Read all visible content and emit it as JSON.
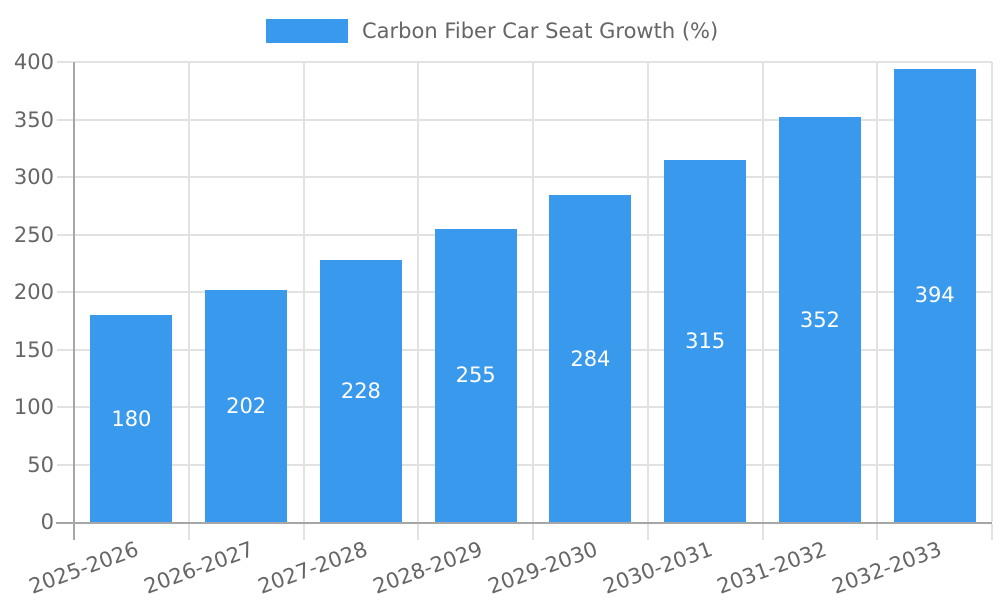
{
  "legend": {
    "label": "Carbon Fiber Car Seat Growth (%)"
  },
  "colors": {
    "bar": "#3999ED",
    "text": "#666666",
    "grid": "#E2E2E2",
    "zero_line": "#A6A6A6",
    "value_label": "#FFFFFF",
    "background": "#FFFFFF"
  },
  "chart_data": {
    "type": "bar",
    "title": "Carbon Fiber Car Seat Growth (%)",
    "categories": [
      "2025-2026",
      "2026-2027",
      "2027-2028",
      "2028-2029",
      "2029-2030",
      "2030-2031",
      "2031-2032",
      "2032-2033"
    ],
    "values": [
      180,
      202,
      228,
      255,
      284,
      315,
      352,
      394
    ],
    "series": [
      {
        "name": "Carbon Fiber Car Seat Growth (%)",
        "values": [
          180,
          202,
          228,
          255,
          284,
          315,
          352,
          394
        ]
      }
    ],
    "xlabel": "",
    "ylabel": "",
    "ylim": [
      0,
      400
    ],
    "yticks": [
      0,
      50,
      100,
      150,
      200,
      250,
      300,
      350,
      400
    ],
    "grid": true,
    "legend_position": "top-center",
    "value_label_position": "inside-center",
    "x_tick_rotation_deg": -20
  }
}
